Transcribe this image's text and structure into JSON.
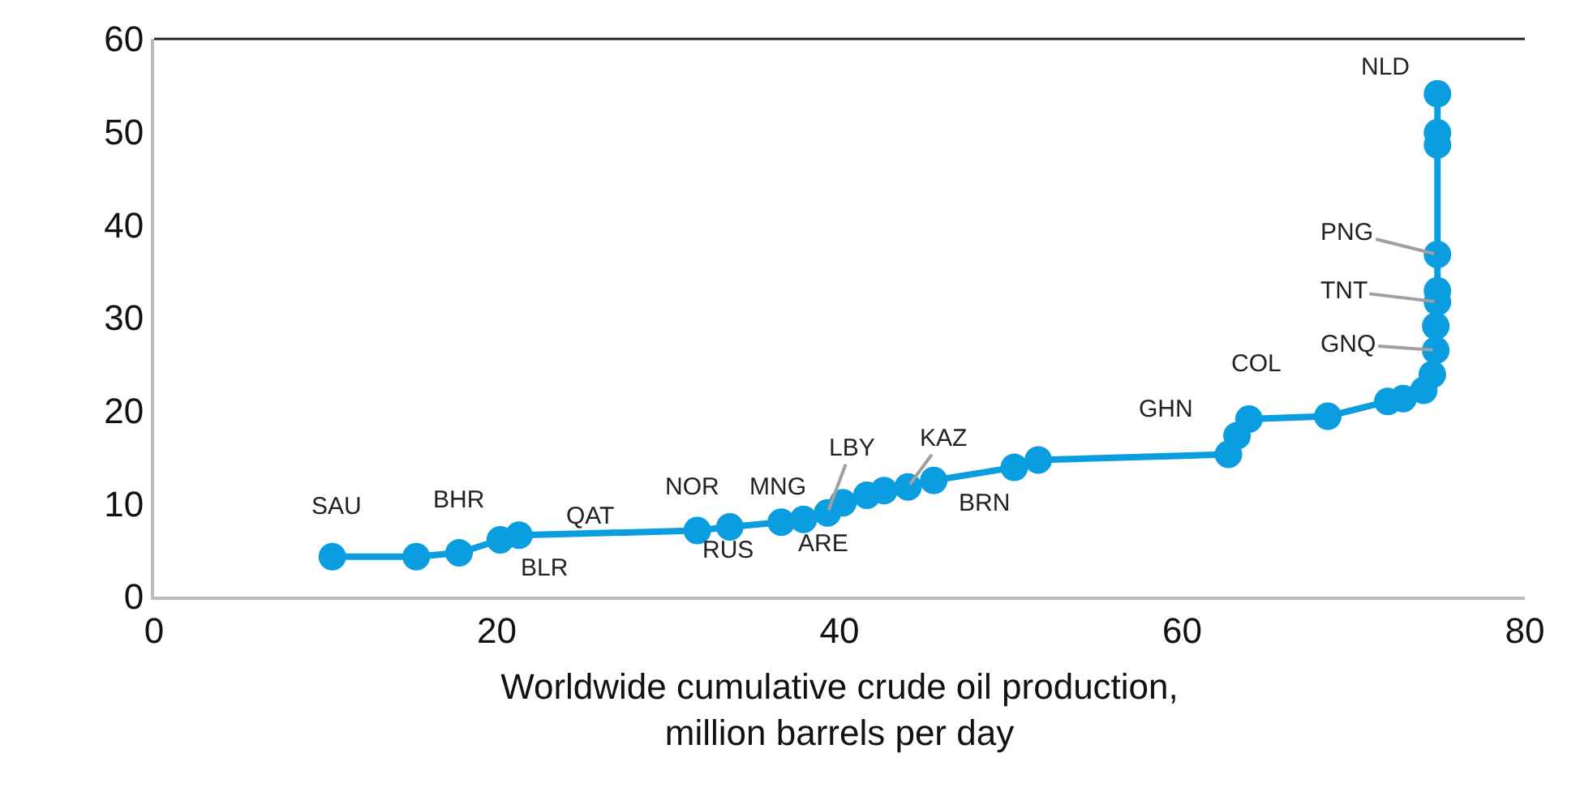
{
  "chart_data": {
    "type": "line",
    "xlabel": "Worldwide cumulative crude oil production,\nmillion barrels per day",
    "x": [
      10.4,
      15.3,
      17.8,
      20.2,
      21.3,
      31.7,
      33.6,
      36.6,
      37.9,
      39.3,
      40.2,
      41.6,
      42.6,
      44.0,
      45.5,
      50.2,
      51.6,
      62.7,
      63.2,
      63.9,
      68.5,
      72.0,
      72.9,
      74.1,
      74.6,
      74.8,
      74.8,
      74.9,
      74.9,
      74.9,
      74.9,
      74.9,
      74.9
    ],
    "series": [
      {
        "color": "#0a9ee0",
        "values": [
          4.3,
          4.3,
          4.7,
          6.1,
          6.6,
          7.1,
          7.5,
          8.0,
          8.3,
          9.0,
          10.1,
          10.9,
          11.4,
          11.8,
          12.5,
          13.9,
          14.7,
          15.3,
          17.3,
          19.1,
          19.4,
          21.0,
          21.3,
          22.2,
          23.9,
          26.5,
          29.1,
          31.7,
          32.9,
          36.8,
          48.6,
          49.9,
          54.1
        ]
      }
    ],
    "xlim": [
      0,
      80
    ],
    "xticks": [
      0,
      20,
      40,
      60,
      80
    ],
    "ylim": [
      0,
      60
    ],
    "yticks": [
      0,
      10,
      20,
      30,
      40,
      50,
      60
    ],
    "marker": "circle",
    "line_style": "solid",
    "annotations": [
      {
        "text": "SAU",
        "x": 10.4,
        "y": 4.3
      },
      {
        "text": "BHR",
        "x": 17.8,
        "y": 4.7
      },
      {
        "text": "BLR",
        "x": 20.2,
        "y": 6.1
      },
      {
        "text": "QAT",
        "x": 21.3,
        "y": 6.6
      },
      {
        "text": "NOR",
        "x": 31.7,
        "y": 7.1
      },
      {
        "text": "RUS",
        "x": 33.6,
        "y": 7.5
      },
      {
        "text": "MNG",
        "x": 36.6,
        "y": 8.0
      },
      {
        "text": "ARE",
        "x": 37.9,
        "y": 8.3
      },
      {
        "text": "LBY",
        "x": 39.3,
        "y": 9.0
      },
      {
        "text": "KAZ",
        "x": 44.0,
        "y": 11.8
      },
      {
        "text": "BRN",
        "x": 45.5,
        "y": 12.5
      },
      {
        "text": "GHN",
        "x": 62.7,
        "y": 15.3
      },
      {
        "text": "COL",
        "x": 63.9,
        "y": 19.1
      },
      {
        "text": "GNQ",
        "x": 74.8,
        "y": 26.5
      },
      {
        "text": "TNT",
        "x": 74.9,
        "y": 31.7
      },
      {
        "text": "PNG",
        "x": 74.9,
        "y": 36.8
      },
      {
        "text": "NLD",
        "x": 74.9,
        "y": 54.1
      }
    ]
  }
}
